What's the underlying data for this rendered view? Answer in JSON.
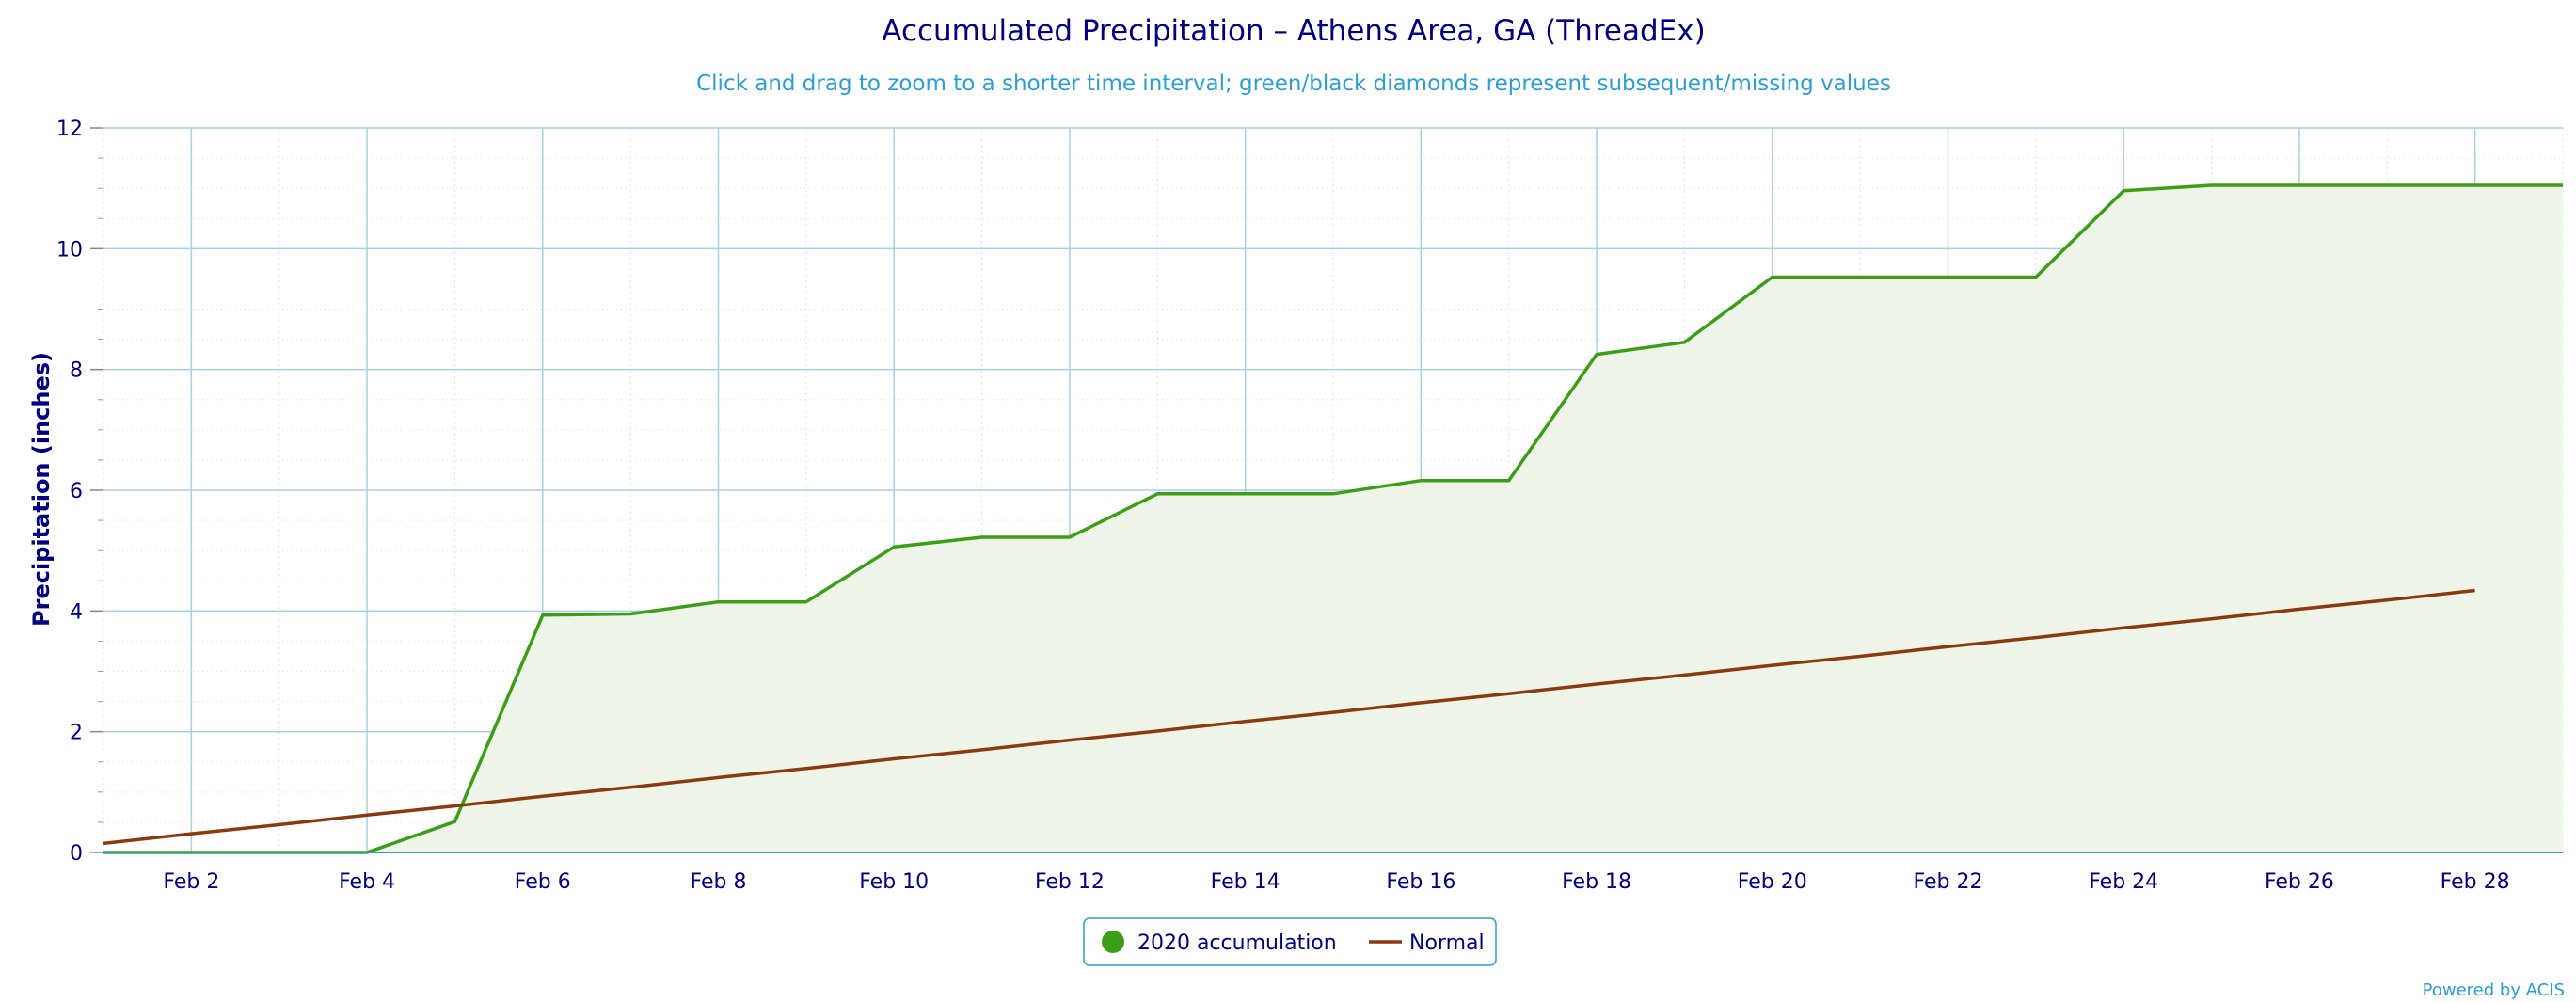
{
  "chart_data": {
    "type": "area",
    "title": "Accumulated Precipitation – Athens Area, GA (ThreadEx)",
    "subtitle": "Click and drag to zoom to a shorter time interval; green/black diamonds represent subsequent/missing values",
    "ylabel": "Precipitation (inches)",
    "xlabel": "",
    "ylim": [
      0,
      12
    ],
    "xlim": [
      1,
      29
    ],
    "yticks": [
      0,
      2,
      4,
      6,
      8,
      10,
      12
    ],
    "xticks": [
      {
        "x": 2,
        "label": "Feb 2"
      },
      {
        "x": 4,
        "label": "Feb 4"
      },
      {
        "x": 6,
        "label": "Feb 6"
      },
      {
        "x": 8,
        "label": "Feb 8"
      },
      {
        "x": 10,
        "label": "Feb 10"
      },
      {
        "x": 12,
        "label": "Feb 12"
      },
      {
        "x": 14,
        "label": "Feb 14"
      },
      {
        "x": 16,
        "label": "Feb 16"
      },
      {
        "x": 18,
        "label": "Feb 18"
      },
      {
        "x": 20,
        "label": "Feb 20"
      },
      {
        "x": 22,
        "label": "Feb 22"
      },
      {
        "x": 24,
        "label": "Feb 24"
      },
      {
        "x": 26,
        "label": "Feb 26"
      },
      {
        "x": 28,
        "label": "Feb 28"
      }
    ],
    "grid": true,
    "legend_position": "bottom-center",
    "series": [
      {
        "name": "2020 accumulation",
        "color": "#3c9e17",
        "fill": "#eef5e8",
        "x": [
          1,
          2,
          3,
          4,
          5,
          6,
          7,
          8,
          9,
          10,
          11,
          12,
          13,
          14,
          15,
          16,
          17,
          18,
          19,
          20,
          21,
          22,
          23,
          24,
          25,
          26,
          27,
          28,
          29
        ],
        "values": [
          0.0,
          0.0,
          0.0,
          0.0,
          0.51,
          3.93,
          3.95,
          4.15,
          4.15,
          5.06,
          5.22,
          5.22,
          5.94,
          5.94,
          5.94,
          6.16,
          6.16,
          8.25,
          8.45,
          9.53,
          9.53,
          9.53,
          9.53,
          10.96,
          11.05,
          11.05,
          11.05,
          11.05,
          11.05
        ]
      },
      {
        "name": "Normal",
        "color": "#8b3a0e",
        "x": [
          1,
          2,
          3,
          4,
          5,
          6,
          7,
          8,
          9,
          10,
          11,
          12,
          13,
          14,
          15,
          16,
          17,
          18,
          19,
          20,
          21,
          22,
          23,
          24,
          25,
          26,
          27,
          28
        ],
        "values": [
          0.15,
          0.31,
          0.46,
          0.62,
          0.77,
          0.93,
          1.08,
          1.24,
          1.39,
          1.55,
          1.7,
          1.86,
          2.01,
          2.17,
          2.32,
          2.48,
          2.63,
          2.79,
          2.94,
          3.1,
          3.25,
          3.41,
          3.56,
          3.72,
          3.87,
          4.03,
          4.18,
          4.34
        ]
      }
    ]
  },
  "credit": "Powered by ACIS"
}
